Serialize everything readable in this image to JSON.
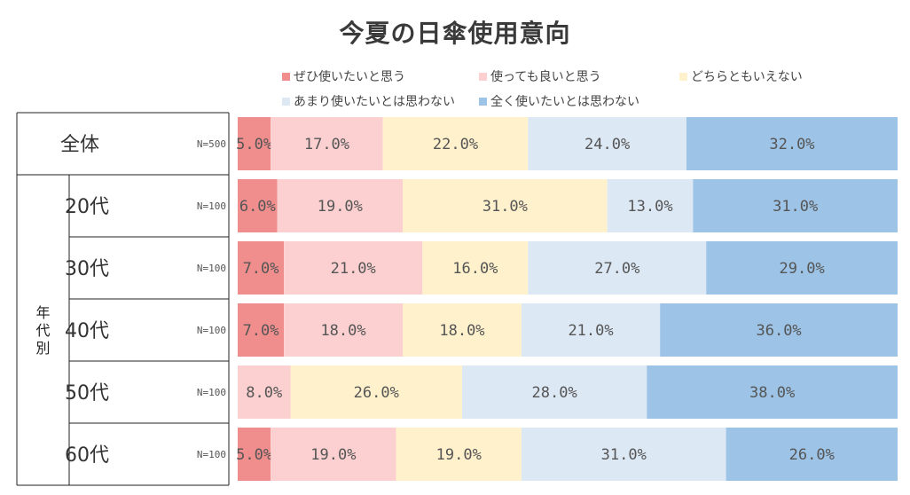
{
  "chart_data": {
    "type": "bar",
    "orientation": "horizontal",
    "stacked": true,
    "percent": true,
    "title": "今夏の日傘使用意向",
    "legend_position": "top",
    "group_label": "年代別",
    "categories": [
      "全体",
      "20代",
      "30代",
      "40代",
      "50代",
      "60代"
    ],
    "n_labels": [
      "N=500",
      "N=100",
      "N=100",
      "N=100",
      "N=100",
      "N=100"
    ],
    "series": [
      {
        "name": "ぜひ使いたいと思う",
        "color": "#f08e8e",
        "values": [
          5.0,
          6.0,
          7.0,
          7.0,
          0,
          5.0
        ],
        "labels": [
          "5.0%",
          "6.0%",
          "7.0%",
          "7.0%",
          "",
          "5.0%"
        ]
      },
      {
        "name": "使っても良いと思う",
        "color": "#fcd0d0",
        "values": [
          17.0,
          19.0,
          21.0,
          18.0,
          8.0,
          19.0
        ],
        "labels": [
          "17.0%",
          "19.0%",
          "21.0%",
          "18.0%",
          "8.0%",
          "19.0%"
        ]
      },
      {
        "name": "どちらともいえない",
        "color": "#fff1cc",
        "values": [
          22.0,
          31.0,
          16.0,
          18.0,
          26.0,
          19.0
        ],
        "labels": [
          "22.0%",
          "31.0%",
          "16.0%",
          "18.0%",
          "26.0%",
          "19.0%"
        ]
      },
      {
        "name": "あまり使いたいとは思わない",
        "color": "#dde8f5",
        "values": [
          24.0,
          13.0,
          27.0,
          21.0,
          28.0,
          31.0
        ],
        "labels": [
          "24.0%",
          "13.0%",
          "27.0%",
          "21.0%",
          "28.0%",
          "31.0%"
        ]
      },
      {
        "name": "全く使いたいとは思わない",
        "color": "#9dc3e6",
        "values": [
          32.0,
          31.0,
          29.0,
          36.0,
          38.0,
          26.0
        ],
        "labels": [
          "32.0%",
          "31.0%",
          "29.0%",
          "36.0%",
          "38.0%",
          "26.0%"
        ]
      }
    ]
  }
}
